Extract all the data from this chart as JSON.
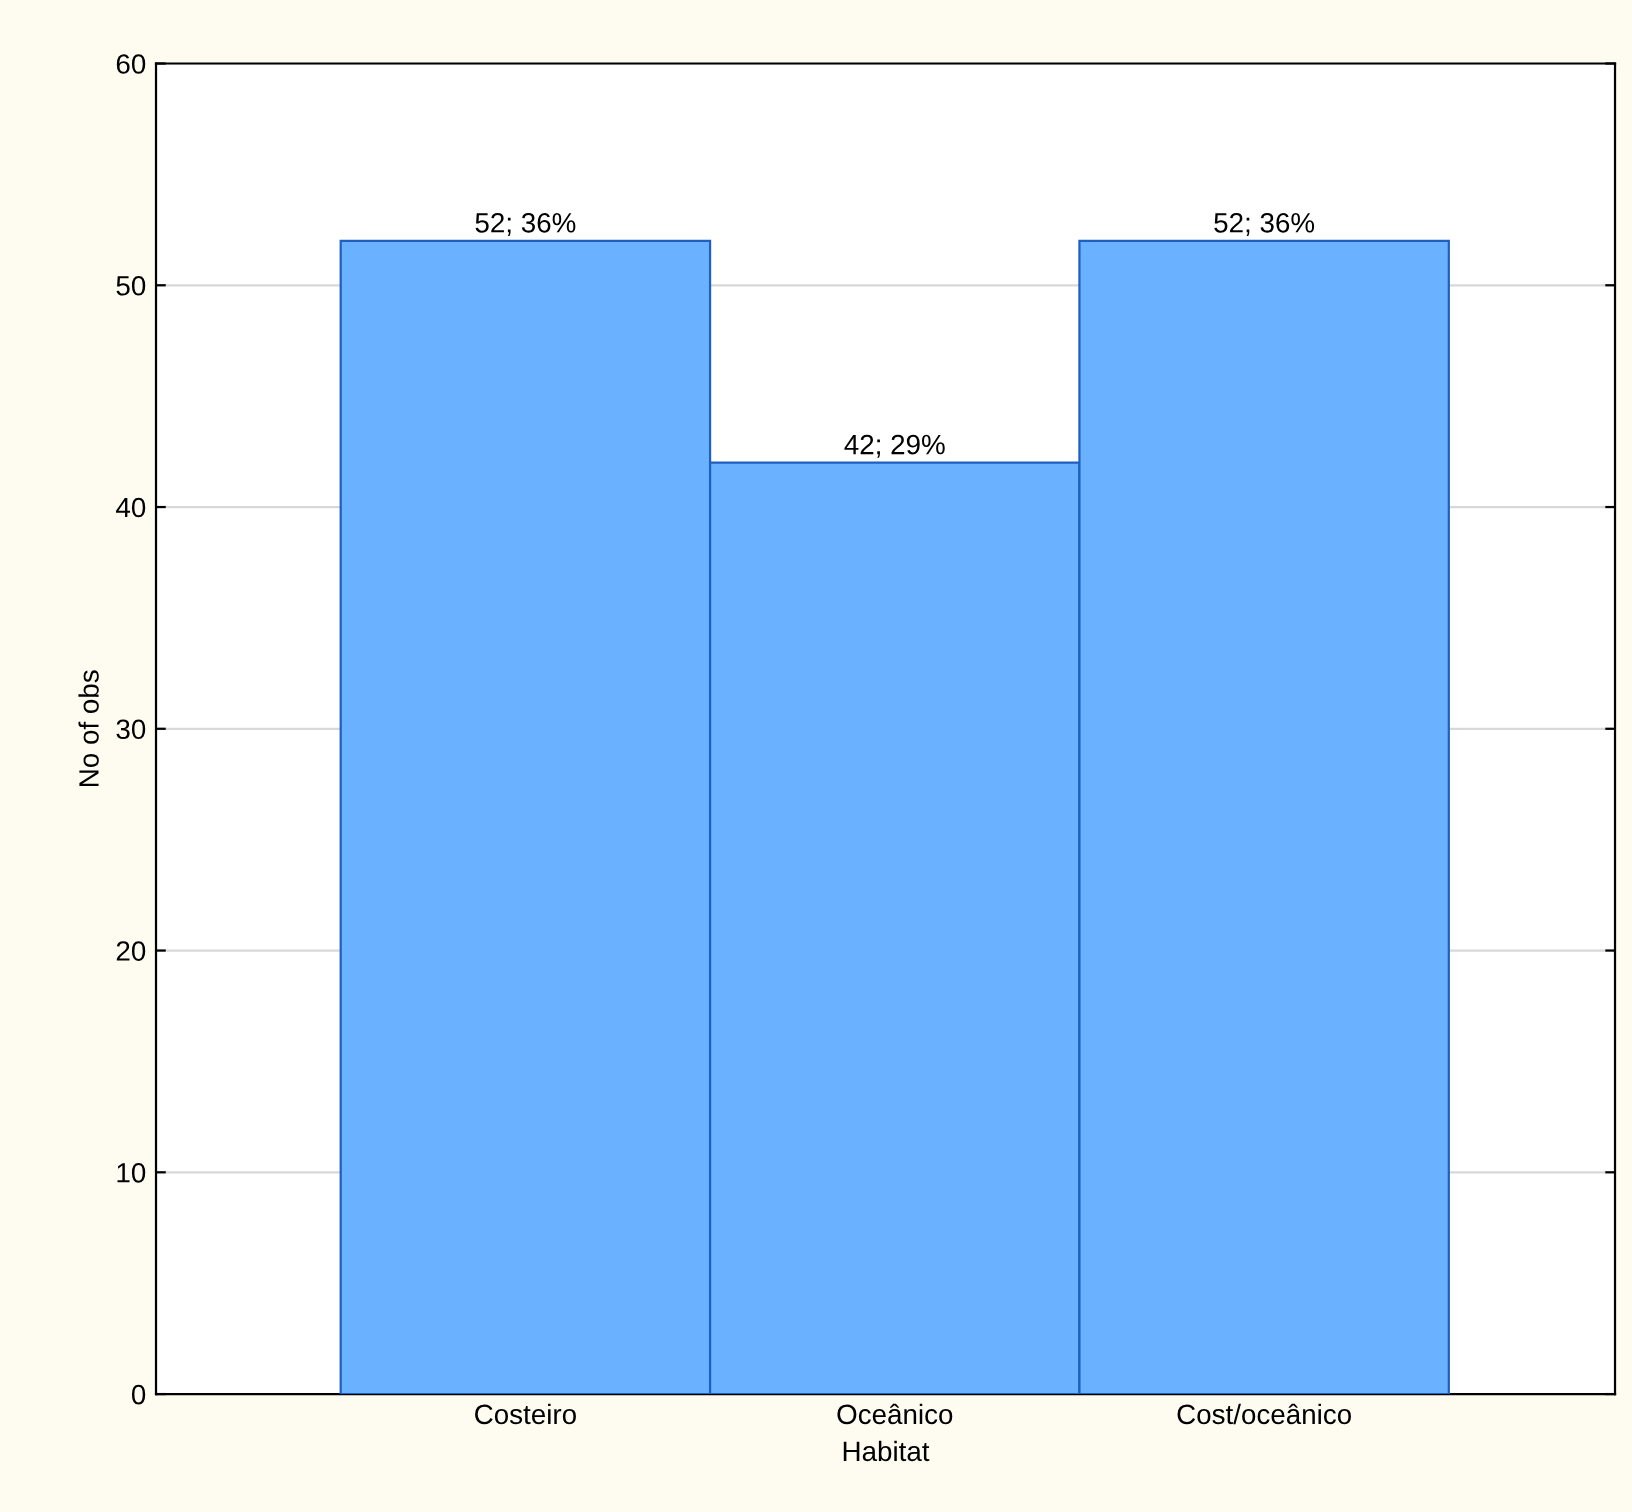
{
  "chart_data": {
    "type": "bar",
    "xlabel": "Habitat",
    "ylabel": "No of obs",
    "categories": [
      "Costeiro",
      "Oceânico",
      "Cost/oceânico"
    ],
    "values": [
      52,
      42,
      52
    ],
    "value_labels": [
      "52; 36%",
      "42; 29%",
      "52; 36%"
    ],
    "color": "#6ab2ff",
    "ylim": [
      0,
      60
    ],
    "yticks": [
      0,
      10,
      20,
      30,
      40,
      50,
      60
    ],
    "grid": "y"
  }
}
